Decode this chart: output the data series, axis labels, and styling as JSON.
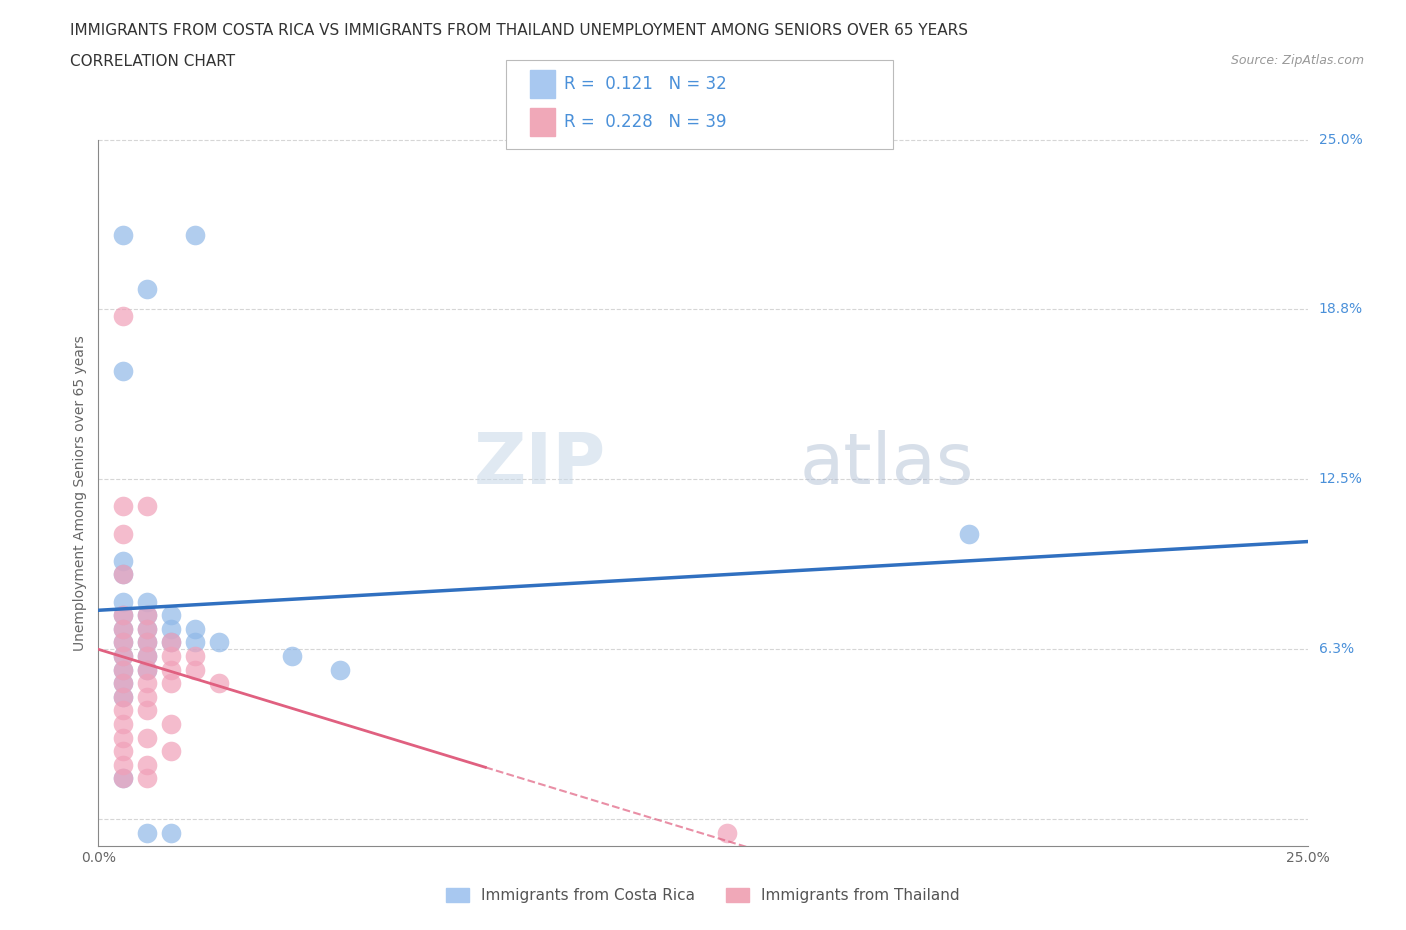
{
  "title_line1": "IMMIGRANTS FROM COSTA RICA VS IMMIGRANTS FROM THAILAND UNEMPLOYMENT AMONG SENIORS OVER 65 YEARS",
  "title_line2": "CORRELATION CHART",
  "source_text": "Source: ZipAtlas.com",
  "ylabel": "Unemployment Among Seniors over 65 years",
  "xlim": [
    0.0,
    0.25
  ],
  "ylim": [
    -0.01,
    0.25
  ],
  "ytick_vals": [
    0.0,
    0.0625,
    0.125,
    0.1875,
    0.25
  ],
  "right_ytick_labels": [
    "25.0%",
    "18.8%",
    "12.5%",
    "6.3%"
  ],
  "right_ytick_vals": [
    0.25,
    0.1875,
    0.125,
    0.0625
  ],
  "legend_entries": [
    {
      "label": "Immigrants from Costa Rica",
      "color": "#a8c8f0",
      "R": "0.121",
      "N": "32"
    },
    {
      "label": "Immigrants from Thailand",
      "color": "#f0a8b8",
      "R": "0.228",
      "N": "39"
    }
  ],
  "costa_rica_color": "#90b8e8",
  "thailand_color": "#f0a0b8",
  "costa_rica_line_color": "#3070c0",
  "thailand_line_color": "#e06080",
  "costa_rica_points": [
    [
      0.005,
      0.215
    ],
    [
      0.02,
      0.215
    ],
    [
      0.01,
      0.195
    ],
    [
      0.005,
      0.165
    ],
    [
      0.005,
      0.095
    ],
    [
      0.005,
      0.09
    ],
    [
      0.005,
      0.08
    ],
    [
      0.01,
      0.08
    ],
    [
      0.005,
      0.075
    ],
    [
      0.01,
      0.075
    ],
    [
      0.015,
      0.075
    ],
    [
      0.005,
      0.07
    ],
    [
      0.01,
      0.07
    ],
    [
      0.015,
      0.07
    ],
    [
      0.02,
      0.07
    ],
    [
      0.005,
      0.065
    ],
    [
      0.01,
      0.065
    ],
    [
      0.015,
      0.065
    ],
    [
      0.02,
      0.065
    ],
    [
      0.025,
      0.065
    ],
    [
      0.005,
      0.06
    ],
    [
      0.01,
      0.06
    ],
    [
      0.04,
      0.06
    ],
    [
      0.005,
      0.055
    ],
    [
      0.01,
      0.055
    ],
    [
      0.05,
      0.055
    ],
    [
      0.005,
      0.05
    ],
    [
      0.005,
      0.045
    ],
    [
      0.18,
      0.105
    ],
    [
      0.005,
      0.015
    ],
    [
      0.01,
      -0.005
    ],
    [
      0.015,
      -0.005
    ]
  ],
  "thailand_points": [
    [
      0.005,
      0.185
    ],
    [
      0.005,
      0.115
    ],
    [
      0.01,
      0.115
    ],
    [
      0.005,
      0.105
    ],
    [
      0.005,
      0.09
    ],
    [
      0.005,
      0.075
    ],
    [
      0.01,
      0.075
    ],
    [
      0.005,
      0.07
    ],
    [
      0.01,
      0.07
    ],
    [
      0.005,
      0.065
    ],
    [
      0.01,
      0.065
    ],
    [
      0.015,
      0.065
    ],
    [
      0.005,
      0.06
    ],
    [
      0.01,
      0.06
    ],
    [
      0.015,
      0.06
    ],
    [
      0.02,
      0.06
    ],
    [
      0.005,
      0.055
    ],
    [
      0.01,
      0.055
    ],
    [
      0.015,
      0.055
    ],
    [
      0.02,
      0.055
    ],
    [
      0.005,
      0.05
    ],
    [
      0.01,
      0.05
    ],
    [
      0.015,
      0.05
    ],
    [
      0.025,
      0.05
    ],
    [
      0.005,
      0.045
    ],
    [
      0.01,
      0.045
    ],
    [
      0.005,
      0.04
    ],
    [
      0.01,
      0.04
    ],
    [
      0.005,
      0.035
    ],
    [
      0.015,
      0.035
    ],
    [
      0.005,
      0.03
    ],
    [
      0.01,
      0.03
    ],
    [
      0.005,
      0.025
    ],
    [
      0.015,
      0.025
    ],
    [
      0.005,
      0.02
    ],
    [
      0.01,
      0.02
    ],
    [
      0.005,
      0.015
    ],
    [
      0.01,
      0.015
    ],
    [
      0.13,
      -0.005
    ]
  ],
  "grid_color": "#cccccc",
  "background_color": "#ffffff",
  "title_fontsize": 11,
  "axis_label_fontsize": 10,
  "tick_fontsize": 10
}
